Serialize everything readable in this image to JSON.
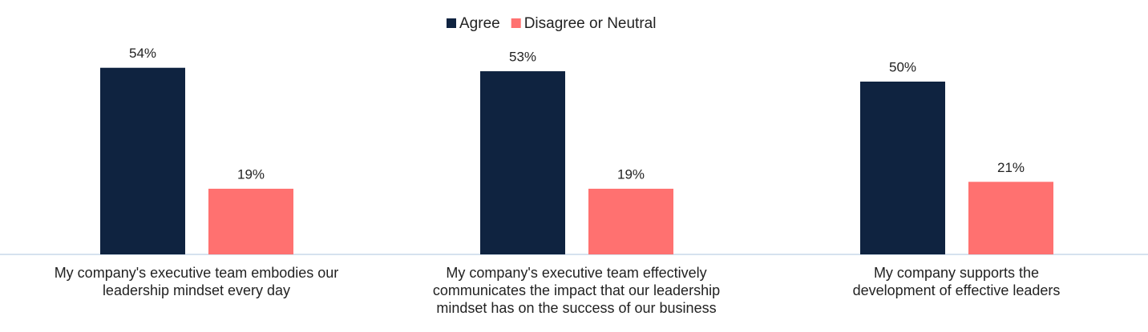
{
  "chart_data": {
    "type": "bar",
    "categories": [
      "My company's executive team embodies our leadership mindset every day",
      "My company's executive team effectively communicates the impact that our leadership mindset has on the success of our business",
      "My company supports the development of effective leaders"
    ],
    "series": [
      {
        "name": "Agree",
        "color": "#0f2340",
        "values": [
          54,
          53,
          50
        ],
        "value_labels": [
          "54%",
          "53%",
          "50%"
        ]
      },
      {
        "name": "Disagree or Neutral",
        "color": "#ff7170",
        "values": [
          19,
          19,
          21
        ],
        "value_labels": [
          "19%",
          "19%",
          "21%"
        ]
      }
    ],
    "legend": "top"
  }
}
